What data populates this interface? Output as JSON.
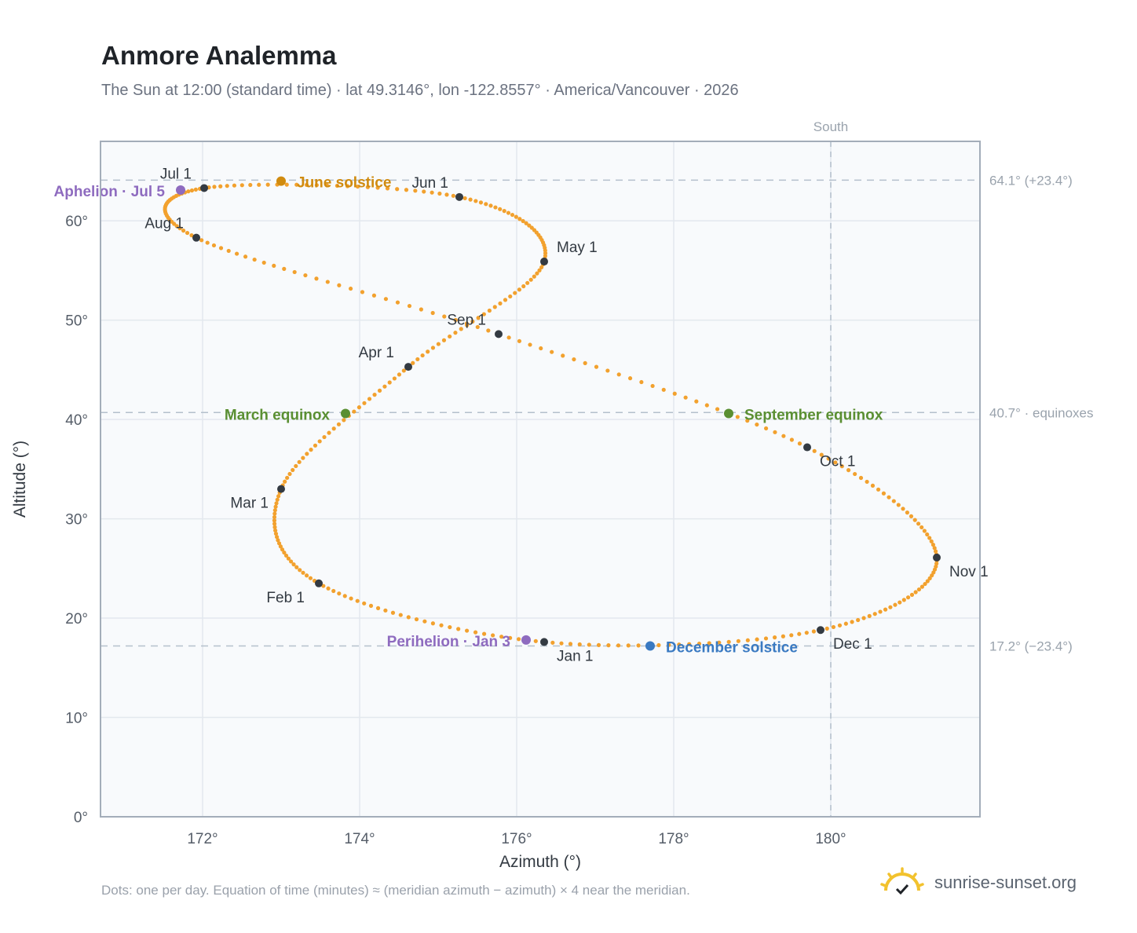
{
  "header": {
    "title": "Anmore Analemma",
    "subtitle": "The Sun at 12:00 (standard time) · lat 49.3146°, lon -122.8557° · America/Vancouver · 2026"
  },
  "footer": {
    "note": "Dots: one per day. Equation of time (minutes) ≈ (meridian azimuth − azimuth) × 4 near the meridian.",
    "brand": "sunrise-sunset.org",
    "brand_icon": "sun-icon"
  },
  "chart_data": {
    "type": "scatter",
    "xlabel": "Azimuth (°)",
    "ylabel": "Altitude (°)",
    "xlim": [
      170.7,
      181.9
    ],
    "ylim": [
      0,
      68
    ],
    "x_ticks": [
      172,
      174,
      176,
      178,
      180
    ],
    "x_tick_labels": [
      "172°",
      "174°",
      "176°",
      "178°",
      "180°"
    ],
    "y_ticks": [
      0,
      10,
      20,
      30,
      40,
      50,
      60
    ],
    "y_tick_labels": [
      "0°",
      "10°",
      "20°",
      "30°",
      "40°",
      "50°",
      "60°"
    ],
    "grid": true,
    "curve_color": "#f2a12e",
    "month_point_color": "#333a42",
    "meridian": {
      "azimuth": 180,
      "label": "South"
    },
    "reference_lines": [
      {
        "altitude": 64.1,
        "label": "64.1° (+23.4°)"
      },
      {
        "altitude": 40.7,
        "label": "40.7° · equinoxes"
      },
      {
        "altitude": 17.2,
        "label": "17.2° (−23.4°)"
      }
    ],
    "month_points": [
      {
        "label": "Jan 1",
        "x": 176.35,
        "y": 17.6
      },
      {
        "label": "Feb 1",
        "x": 173.48,
        "y": 23.5
      },
      {
        "label": "Mar 1",
        "x": 173.0,
        "y": 33.0
      },
      {
        "label": "Apr 1",
        "x": 174.62,
        "y": 45.3
      },
      {
        "label": "May 1",
        "x": 176.35,
        "y": 55.9
      },
      {
        "label": "Jun 1",
        "x": 175.27,
        "y": 62.4
      },
      {
        "label": "Jul 1",
        "x": 172.02,
        "y": 63.3
      },
      {
        "label": "Aug 1",
        "x": 171.92,
        "y": 58.3
      },
      {
        "label": "Sep 1",
        "x": 175.77,
        "y": 48.6
      },
      {
        "label": "Oct 1",
        "x": 179.7,
        "y": 37.2
      },
      {
        "label": "Nov 1",
        "x": 181.35,
        "y": 26.1
      },
      {
        "label": "Dec 1",
        "x": 179.87,
        "y": 18.8
      }
    ],
    "events": [
      {
        "label": "Perihelion · Jan 3",
        "x": 176.12,
        "y": 17.8,
        "color": "#8e6bbf"
      },
      {
        "label": "March equinox",
        "x": 173.82,
        "y": 40.6,
        "color": "#5a8f32"
      },
      {
        "label": "June solstice",
        "x": 173.0,
        "y": 64.0,
        "color": "#d08b0f"
      },
      {
        "label": "Aphelion · Jul 5",
        "x": 171.72,
        "y": 63.1,
        "color": "#8e6bbf"
      },
      {
        "label": "September equinox",
        "x": 178.7,
        "y": 40.6,
        "color": "#5a8f32"
      },
      {
        "label": "December solstice",
        "x": 177.7,
        "y": 17.2,
        "color": "#3a7ac2"
      }
    ]
  }
}
